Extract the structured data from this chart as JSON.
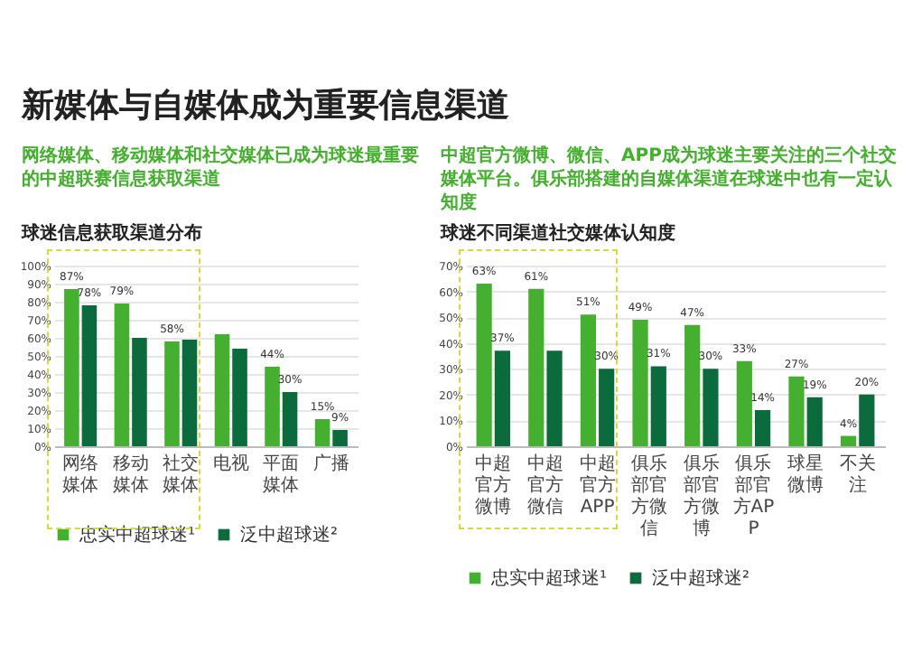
{
  "chart_data": [
    {
      "type": "bar",
      "title": "新媒体与自媒体成为重要信息渠道",
      "subtitle": "网络媒体、移动媒体和社交媒体已成为球迷最重要的中超联赛信息获取渠道",
      "annotations": [
        "球迷信息获取渠道分布"
      ],
      "categories": [
        "网络媒体",
        "移动媒体",
        "社交媒体",
        "电视",
        "平面媒体",
        "广播"
      ],
      "series": [
        {
          "name": "忠实中超球迷¹",
          "color": "#45b02f",
          "values": [
            87,
            79,
            58,
            62,
            44,
            15
          ],
          "value_labels": [
            "87%",
            "79%",
            "58%",
            null,
            "44%",
            "15%"
          ]
        },
        {
          "name": "泛中超球迷²",
          "color": "#0b6b3c",
          "values": [
            78,
            60,
            59,
            54,
            30,
            9
          ],
          "value_labels": [
            "78%",
            null,
            null,
            null,
            "30%",
            "9%"
          ]
        }
      ],
      "ylim": [
        0,
        100
      ],
      "yticks": [
        {
          "value": 0,
          "label": "0%"
        },
        {
          "value": 10,
          "label": "10%"
        },
        {
          "value": 20,
          "label": "20%"
        },
        {
          "value": 30,
          "label": "30%"
        },
        {
          "value": 40,
          "label": "40%"
        },
        {
          "value": 50,
          "label": "50%"
        },
        {
          "value": 60,
          "label": "60%"
        },
        {
          "value": 70,
          "label": "70%"
        },
        {
          "value": 80,
          "label": "80%"
        },
        {
          "value": 90,
          "label": "90%"
        },
        {
          "value": 100,
          "label": "100%"
        }
      ],
      "grid": "y",
      "legend": "bottom"
    },
    {
      "type": "bar",
      "title": "中超官方微博、微信、APP成为球迷主要关注的三个社交媒体平台。俱乐部搭建的自媒体渠道在球迷中也有一定认知度",
      "subtitle": "球迷不同渠道社交媒体认知度",
      "categories": [
        "中超官方微博",
        "中超官方微信",
        "中超官方APP",
        "俱乐部官方微信",
        "俱乐部官方微博",
        "俱乐部官方APP",
        "球星微博",
        "不关注"
      ],
      "series": [
        {
          "name": "忠实中超球迷¹",
          "color": "#45b02f",
          "values": [
            63,
            61,
            51,
            49,
            47,
            33,
            27,
            4
          ],
          "value_labels": [
            "63%",
            "61%",
            "51%",
            "49%",
            "47%",
            "33%",
            "27%",
            "4%"
          ]
        },
        {
          "name": "泛中超球迷²",
          "color": "#0b6b3c",
          "values": [
            37,
            37,
            30,
            31,
            30,
            14,
            19,
            20
          ],
          "value_labels": [
            "37%",
            null,
            "30%",
            "31%",
            "30%",
            "14%",
            "19%",
            "20%"
          ]
        }
      ],
      "ylim": [
        0,
        70
      ],
      "yticks": [
        {
          "value": 0,
          "label": "0%"
        },
        {
          "value": 10,
          "label": "10%"
        },
        {
          "value": 20,
          "label": "20%"
        },
        {
          "value": 30,
          "label": "30%"
        },
        {
          "value": 40,
          "label": "40%"
        },
        {
          "value": 50,
          "label": "50%"
        },
        {
          "value": 60,
          "label": "60%"
        },
        {
          "value": 70,
          "label": "70%"
        }
      ],
      "grid": "y",
      "legend": "bottom"
    }
  ]
}
